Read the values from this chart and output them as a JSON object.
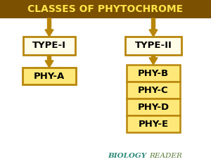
{
  "title": "CLASSES OF PHYTOCHROME",
  "title_bg": "#7B5000",
  "title_fg": "#FFE44A",
  "bg_color": "#FFFFFF",
  "arrow_color": "#B8860B",
  "type1_label": "TYPE-I",
  "type2_label": "TYPE-II",
  "type_box_bg": "#FFFDE8",
  "type_box_edge": "#B8860B",
  "left_child": "PHY-A",
  "left_child_bg": "#FFE87A",
  "left_child_edge": "#B8860B",
  "right_children": [
    "PHY-B",
    "PHY-C",
    "PHY-D",
    "PHY-E"
  ],
  "right_child_bg_top": "#FFE87A",
  "right_child_bg_bot": "#FFD84A",
  "right_child_edge": "#B8860B",
  "watermark_biology": "BIOLOGY",
  "watermark_reader": "READER",
  "watermark_color1": "#2E8B7A",
  "watermark_color2": "#5B7A3A",
  "fig_w": 3.0,
  "fig_h": 2.33,
  "dpi": 100
}
